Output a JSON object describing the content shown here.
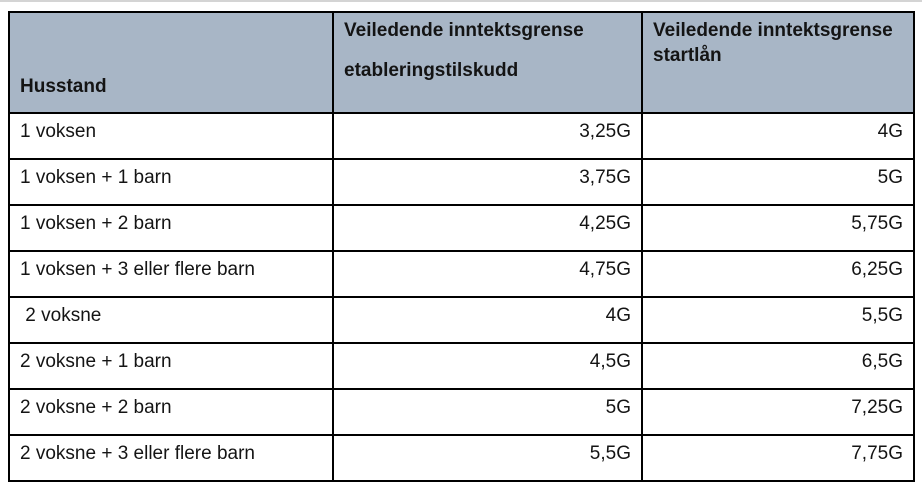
{
  "page": {
    "background": "#ffffff",
    "top_edge_color": "#d4d4d4"
  },
  "table": {
    "style": {
      "header_bg": "#a8b6c6",
      "border_color": "#000000",
      "text_color": "#141414"
    },
    "header": {
      "husstand": "Husstand",
      "etableringstilskudd": {
        "line1": "Veiledende inntektsgrense",
        "line2": "etableringstilskudd"
      },
      "startlaan": {
        "line1": "Veiledende inntektsgrense",
        "line2": "startlån"
      }
    },
    "rows": [
      {
        "husstand": "1 voksen",
        "etableringstilskudd": "3,25G",
        "startlaan": "4G"
      },
      {
        "husstand": "1 voksen + 1 barn",
        "etableringstilskudd": "3,75G",
        "startlaan": "5G"
      },
      {
        "husstand": "1 voksen + 2 barn",
        "etableringstilskudd": "4,25G",
        "startlaan": "5,75G"
      },
      {
        "husstand": "1 voksen + 3 eller flere barn",
        "etableringstilskudd": "4,75G",
        "startlaan": "6,25G"
      },
      {
        "husstand": " 2 voksne",
        "etableringstilskudd": "4G",
        "startlaan": "5,5G"
      },
      {
        "husstand": "2 voksne + 1 barn",
        "etableringstilskudd": "4,5G",
        "startlaan": "6,5G"
      },
      {
        "husstand": "2 voksne + 2 barn",
        "etableringstilskudd": "5G",
        "startlaan": "7,25G"
      },
      {
        "husstand": "2 voksne + 3 eller flere barn",
        "etableringstilskudd": "5,5G",
        "startlaan": "7,75G"
      }
    ]
  }
}
